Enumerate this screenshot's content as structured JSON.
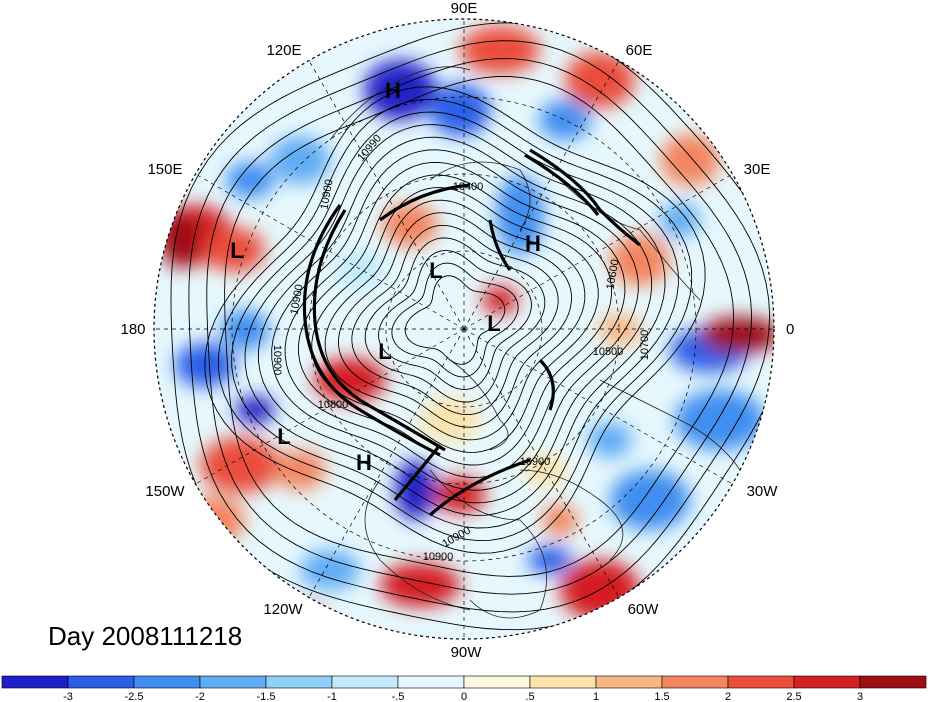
{
  "map": {
    "projection": "north-polar-stereographic",
    "longitude_labels": [
      {
        "text": "90E",
        "name": "lon-label-90e"
      },
      {
        "text": "60E",
        "name": "lon-label-60e"
      },
      {
        "text": "120E",
        "name": "lon-label-120e"
      },
      {
        "text": "30E",
        "name": "lon-label-30e"
      },
      {
        "text": "150E",
        "name": "lon-label-150e"
      },
      {
        "text": "0",
        "name": "lon-label-0"
      },
      {
        "text": "180",
        "name": "lon-label-180"
      },
      {
        "text": "30W",
        "name": "lon-label-30w"
      },
      {
        "text": "150W",
        "name": "lon-label-150w"
      },
      {
        "text": "60W",
        "name": "lon-label-60w"
      },
      {
        "text": "120W",
        "name": "lon-label-120w"
      },
      {
        "text": "90W",
        "name": "lon-label-90w"
      }
    ],
    "pressure_centers": [
      {
        "type": "H",
        "region": "east-siberia"
      },
      {
        "type": "H",
        "region": "europe"
      },
      {
        "type": "H",
        "region": "northeast-pacific"
      },
      {
        "type": "L",
        "region": "north-pacific"
      },
      {
        "type": "L",
        "region": "gulf-of-alaska"
      },
      {
        "type": "L",
        "region": "central-arctic"
      },
      {
        "type": "L",
        "region": "greenland-sea"
      },
      {
        "type": "L",
        "region": "beaufort-sea"
      }
    ],
    "contour_labels": [
      "10990",
      "10900",
      "10400",
      "10900",
      "10600",
      "10700",
      "10500",
      "10800",
      "10900",
      "10900",
      "10900",
      "10900"
    ],
    "date_title": "Day 2008111218"
  },
  "colorbar": {
    "colors": [
      "#2020c8",
      "#2a5ee8",
      "#3f8ef0",
      "#61acf4",
      "#8fd0f8",
      "#c2ecfc",
      "#e6f8fd",
      "#fdf7df",
      "#fce3ac",
      "#f8b683",
      "#f3855f",
      "#ea4d3a",
      "#d41f23",
      "#9e0f12"
    ],
    "tick_labels": [
      "-3",
      "-2.5",
      "-2",
      "-1.5",
      "-1",
      "-.5",
      "0",
      ".5",
      "1",
      "1.5",
      "2",
      "2.5",
      "3"
    ]
  }
}
